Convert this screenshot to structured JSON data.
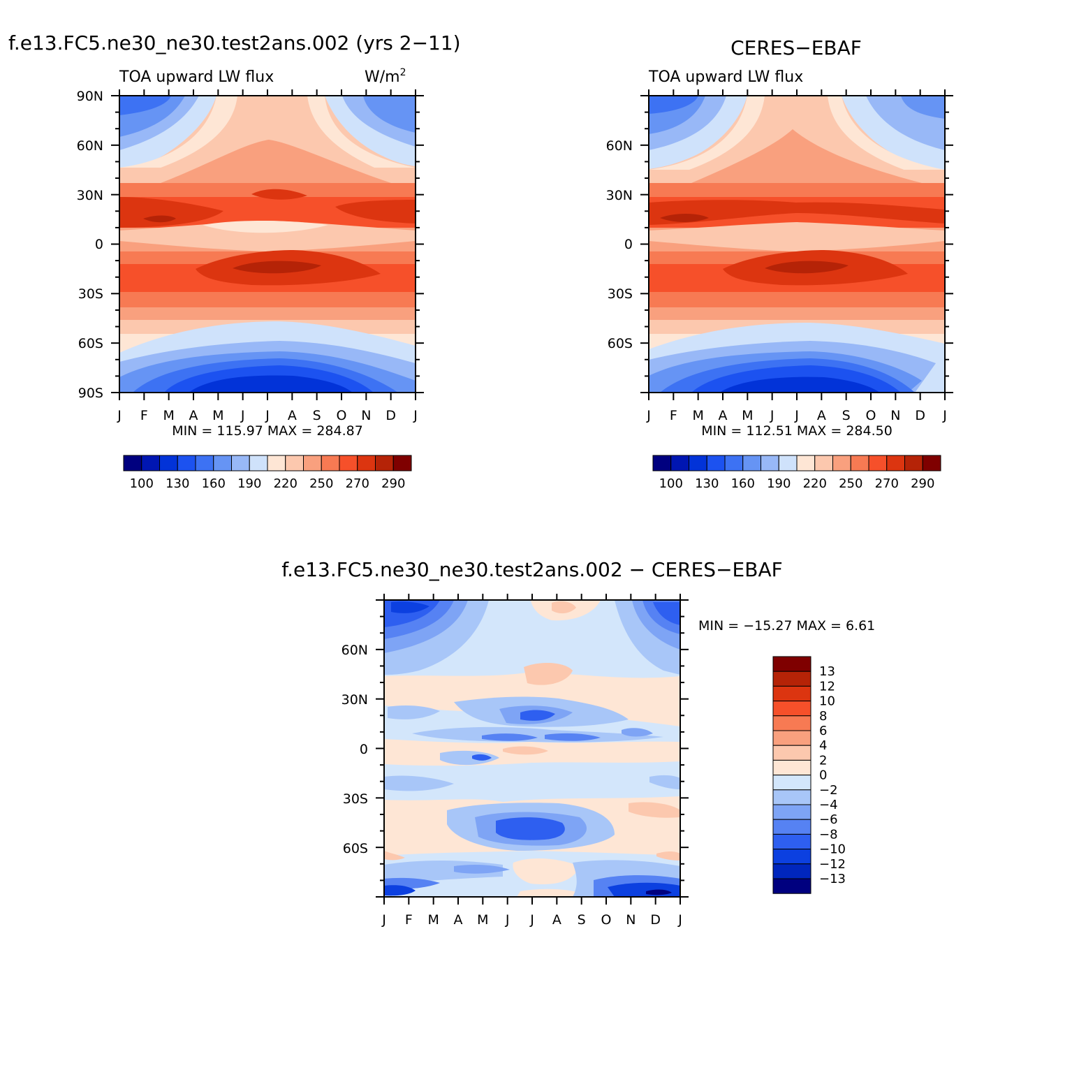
{
  "months": [
    "J",
    "F",
    "M",
    "A",
    "M",
    "J",
    "J",
    "A",
    "S",
    "O",
    "N",
    "D",
    "J"
  ],
  "panel_a": {
    "title": "f.e13.FC5.ne30_ne30.test2ans.002 (yrs 2−11)",
    "subtitle_left": "TOA upward LW flux",
    "units_base": "W/m",
    "units_sup": "2",
    "lat_labels": [
      "90N",
      "60N",
      "30N",
      "0",
      "30S",
      "60S",
      "90S"
    ],
    "stats": "MIN = 115.97 MAX = 284.87"
  },
  "panel_b": {
    "title": "CERES−EBAF",
    "subtitle_left": "TOA upward LW flux",
    "lat_labels": [
      "60N",
      "30N",
      "0",
      "30S",
      "60S"
    ],
    "stats": "MIN = 112.51 MAX = 284.50"
  },
  "panel_c": {
    "title": "f.e13.FC5.ne30_ne30.test2ans.002 − CERES−EBAF",
    "lat_labels": [
      "60N",
      "30N",
      "0",
      "30S",
      "60S"
    ],
    "stats": "MIN = −15.27 MAX =    6.61"
  },
  "abs_colorbar": {
    "labels": [
      "100",
      "130",
      "160",
      "190",
      "220",
      "250",
      "270",
      "290"
    ],
    "colors": [
      "#00007f",
      "#0016b2",
      "#0233d8",
      "#1c52f0",
      "#3d72f3",
      "#6694f4",
      "#98b8f7",
      "#cfe2fb",
      "#fee6d5",
      "#fcc8ae",
      "#f9a07e",
      "#f77a53",
      "#f6502a",
      "#dc3510",
      "#b52307",
      "#7f0000"
    ]
  },
  "diff_colorbar": {
    "labels": [
      "13",
      "12",
      "10",
      "8",
      "6",
      "4",
      "2",
      "0",
      "−2",
      "−4",
      "−6",
      "−8",
      "−10",
      "−12",
      "−13"
    ],
    "colors_top_to_bottom": [
      "#7f0000",
      "#b52307",
      "#dc3510",
      "#f6502a",
      "#f77a53",
      "#f9a07e",
      "#fcc8ae",
      "#fee6d5",
      "#d3e6fb",
      "#a8c6f8",
      "#7ea4f5",
      "#5682f3",
      "#2e5ff0",
      "#0c40e0",
      "#0026bd",
      "#00007f"
    ]
  },
  "chart_data": [
    {
      "type": "heatmap",
      "title": "f.e13.FC5.ne30_ne30.test2ans.002 (yrs 2−11)",
      "subtitle": "TOA upward LW flux",
      "units": "W/m²",
      "x": [
        "J",
        "F",
        "M",
        "A",
        "M",
        "J",
        "J",
        "A",
        "S",
        "O",
        "N",
        "D",
        "J"
      ],
      "y_ticks": [
        "90N",
        "60N",
        "30N",
        "0",
        "30S",
        "60S",
        "90S"
      ],
      "ylim": [
        -90,
        90
      ],
      "min": 115.97,
      "max": 284.87,
      "levels": [
        100,
        110,
        120,
        130,
        140,
        150,
        160,
        170,
        180,
        190,
        200,
        210,
        220,
        230,
        240,
        250,
        260,
        270,
        280,
        290
      ]
    },
    {
      "type": "heatmap",
      "title": "CERES−EBAF",
      "subtitle": "TOA upward LW flux",
      "x": [
        "J",
        "F",
        "M",
        "A",
        "M",
        "J",
        "J",
        "A",
        "S",
        "O",
        "N",
        "D",
        "J"
      ],
      "y_ticks": [
        "60N",
        "30N",
        "0",
        "30S",
        "60S"
      ],
      "ylim": [
        -90,
        90
      ],
      "min": 112.51,
      "max": 284.5
    },
    {
      "type": "heatmap",
      "title": "f.e13.FC5.ne30_ne30.test2ans.002 − CERES−EBAF",
      "x": [
        "J",
        "F",
        "M",
        "A",
        "M",
        "J",
        "J",
        "A",
        "S",
        "O",
        "N",
        "D",
        "J"
      ],
      "y_ticks": [
        "60N",
        "30N",
        "0",
        "30S",
        "60S"
      ],
      "ylim": [
        -90,
        90
      ],
      "min": -15.27,
      "max": 6.61,
      "levels": [
        -13,
        -12,
        -10,
        -8,
        -6,
        -4,
        -2,
        0,
        2,
        4,
        6,
        8,
        10,
        12,
        13
      ]
    }
  ]
}
